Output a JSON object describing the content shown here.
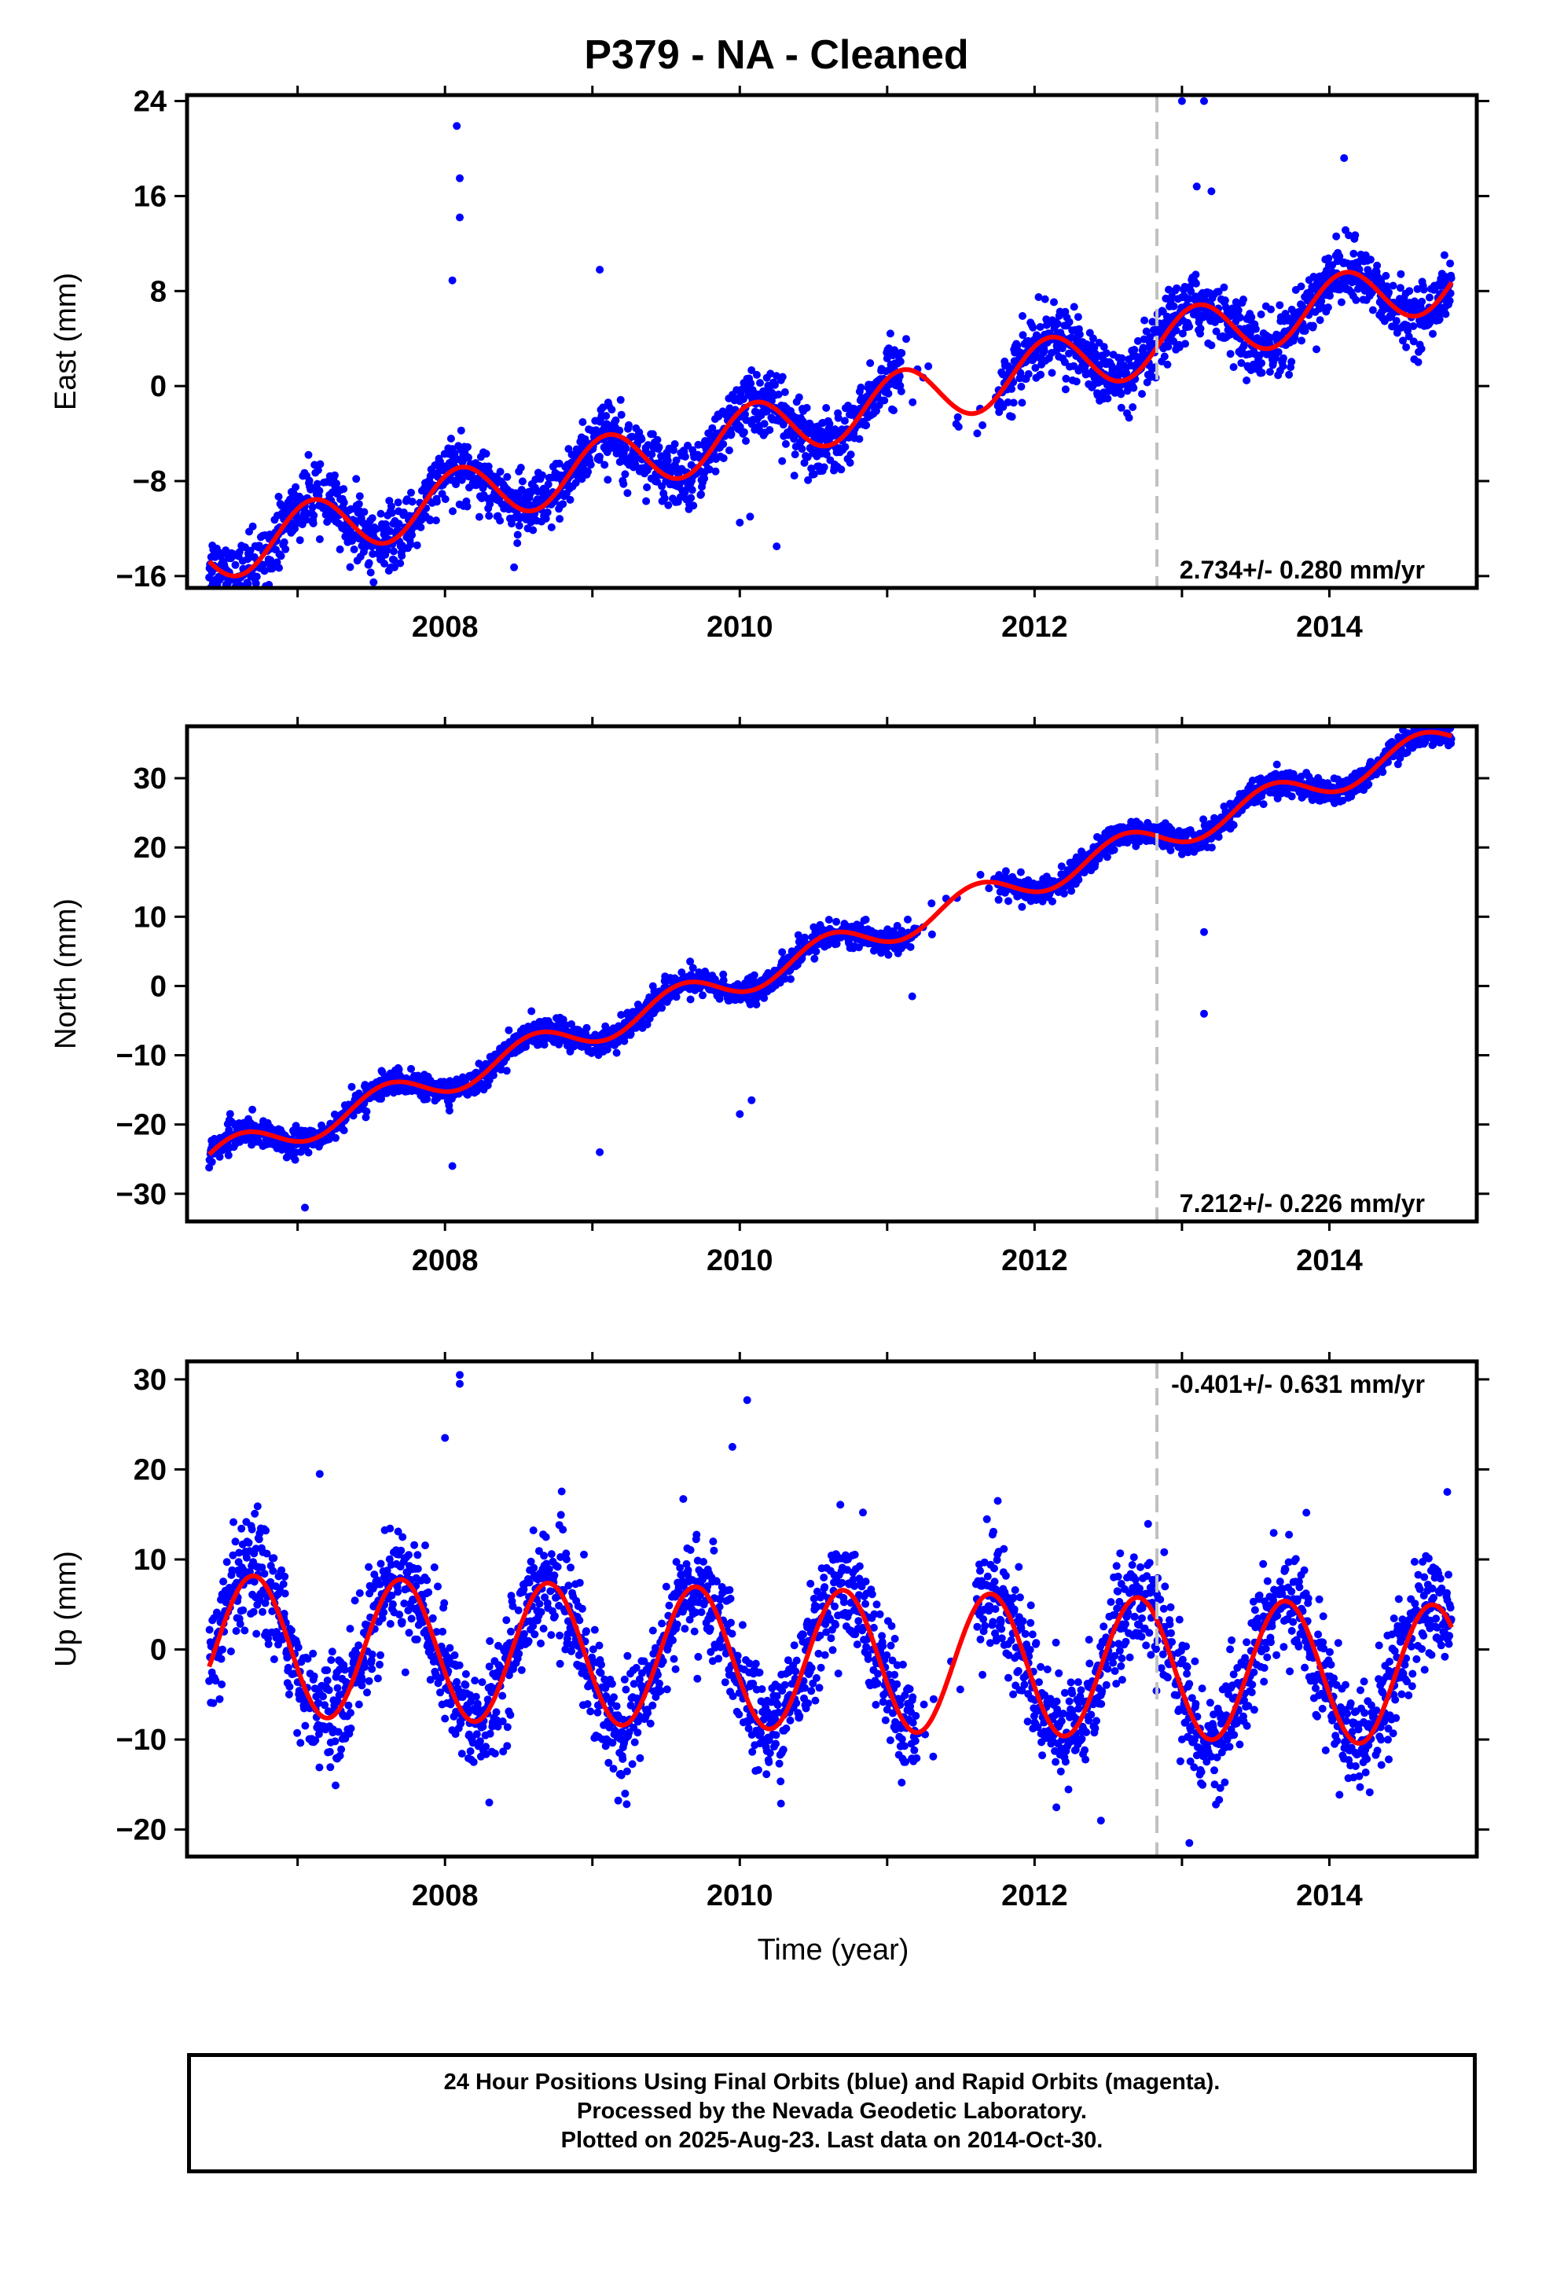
{
  "title": "P379  - NA - Cleaned",
  "x_axis_label": "Time (year)",
  "caption": [
    "24 Hour Positions Using Final Orbits (blue) and Rapid Orbits (magenta).",
    "Processed by the Nevada Geodetic Laboratory.",
    "Plotted on 2025-Aug-23. Last data on 2014-Oct-30."
  ],
  "colors": {
    "points": "#0000ff",
    "fit": "#ff0000",
    "marker_line": "#c0c0c0",
    "frame": "#000000"
  },
  "chart_data": [
    {
      "type": "scatter",
      "panel": "east",
      "ylabel": "East (mm)",
      "annotation": "2.734+/- 0.280 mm/yr",
      "annotation_position": "bottom-right",
      "xlim": [
        2006.25,
        2015.0
      ],
      "ylim": [
        -17,
        24.5
      ],
      "x_ticks": [
        2008,
        2010,
        2012,
        2014
      ],
      "y_ticks": [
        -16,
        -8,
        0,
        8,
        16,
        24
      ],
      "marker_x": 2012.83,
      "trend": {
        "intercept_2006_4": -14.0,
        "rate_mm_per_yr": 2.734,
        "seasonal_amplitude": 2.5,
        "seasonal_phase_year": 2006.85
      },
      "scatter_sd": 1.3,
      "outliers": [
        {
          "x": 2008.08,
          "y": 21.9
        },
        {
          "x": 2008.1,
          "y": 17.5
        },
        {
          "x": 2008.1,
          "y": 14.2
        },
        {
          "x": 2008.05,
          "y": 8.9
        },
        {
          "x": 2009.05,
          "y": 9.8
        },
        {
          "x": 2010.0,
          "y": -11.5
        },
        {
          "x": 2010.07,
          "y": -11.0
        },
        {
          "x": 2010.25,
          "y": -13.5
        },
        {
          "x": 2013.0,
          "y": 24.0
        },
        {
          "x": 2013.15,
          "y": 24.0
        },
        {
          "x": 2013.1,
          "y": 16.8
        },
        {
          "x": 2013.2,
          "y": 16.4
        },
        {
          "x": 2014.1,
          "y": 19.2
        },
        {
          "x": 2013.35,
          "y": 1.6
        }
      ],
      "gap": [
        2011.1,
        2011.75
      ]
    },
    {
      "type": "scatter",
      "panel": "north",
      "ylabel": "North (mm)",
      "annotation": "7.212+/- 0.226 mm/yr",
      "annotation_position": "bottom-right",
      "xlim": [
        2006.25,
        2015.0
      ],
      "ylim": [
        -34,
        37.5
      ],
      "x_ticks": [
        2008,
        2010,
        2012,
        2014
      ],
      "y_ticks": [
        -30,
        -20,
        -10,
        0,
        10,
        20,
        30
      ],
      "marker_x": 2012.83,
      "trend": {
        "intercept_2006_4": -25.0,
        "rate_mm_per_yr": 7.212,
        "seasonal_amplitude": 2.2,
        "seasonal_phase_year": 2006.35
      },
      "scatter_sd": 0.9,
      "outliers": [
        {
          "x": 2007.05,
          "y": -32.0
        },
        {
          "x": 2008.05,
          "y": -26.0
        },
        {
          "x": 2009.05,
          "y": -24.0
        },
        {
          "x": 2010.0,
          "y": -18.5
        },
        {
          "x": 2010.08,
          "y": -16.5
        },
        {
          "x": 2011.17,
          "y": -1.5
        },
        {
          "x": 2013.15,
          "y": 7.8
        },
        {
          "x": 2013.15,
          "y": -4.0
        }
      ],
      "gap": [
        2011.2,
        2011.75
      ]
    },
    {
      "type": "scatter",
      "panel": "up",
      "ylabel": "Up (mm)",
      "annotation": "-0.401+/- 0.631 mm/yr",
      "annotation_position": "top-right",
      "xlim": [
        2006.25,
        2015.0
      ],
      "ylim": [
        -23,
        32
      ],
      "x_ticks": [
        2008,
        2010,
        2012,
        2014
      ],
      "y_ticks": [
        -20,
        -10,
        0,
        10,
        20,
        30
      ],
      "marker_x": 2012.83,
      "trend": {
        "intercept_2006_4": 0.5,
        "rate_mm_per_yr": -0.401,
        "seasonal_amplitude": 7.8,
        "seasonal_phase_year": 2006.45
      },
      "scatter_sd": 3.0,
      "outliers": [
        {
          "x": 2008.1,
          "y": 30.5
        },
        {
          "x": 2008.1,
          "y": 29.5
        },
        {
          "x": 2008.0,
          "y": 23.5
        },
        {
          "x": 2010.05,
          "y": 27.7
        },
        {
          "x": 2009.95,
          "y": 22.5
        },
        {
          "x": 2007.15,
          "y": 19.5
        },
        {
          "x": 2011.75,
          "y": 16.5
        },
        {
          "x": 2014.8,
          "y": 17.5
        },
        {
          "x": 2013.05,
          "y": -21.5
        },
        {
          "x": 2012.45,
          "y": -19.0
        },
        {
          "x": 2008.3,
          "y": -17.0
        }
      ],
      "gap": [
        2011.2,
        2011.6
      ]
    }
  ]
}
